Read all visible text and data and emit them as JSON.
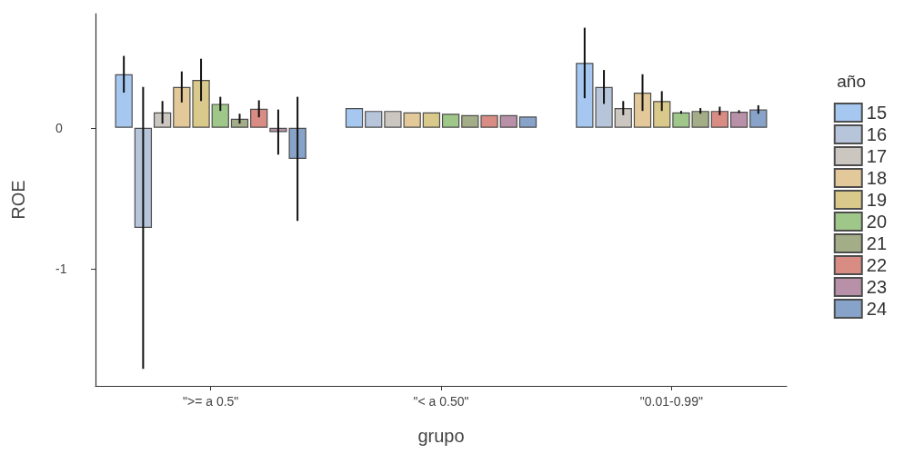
{
  "chart_data": {
    "type": "bar",
    "xlabel": "grupo",
    "ylabel": "ROE",
    "legend_title": "año",
    "legend": "right",
    "categories": [
      "\">= a 0.5\"",
      "\"< a 0.50\"",
      "\"0.01-0.99\""
    ],
    "ylim": [
      -1.83,
      0.81
    ],
    "yticks": [
      -1,
      0
    ],
    "series": [
      {
        "name": "15",
        "color": "#a6c8f0",
        "values": [
          0.38,
          0.14,
          0.46
        ],
        "errors": [
          0.13,
          null,
          0.25
        ]
      },
      {
        "name": "16",
        "color": "#b7c5da",
        "values": [
          -0.71,
          0.12,
          0.29
        ],
        "errors": [
          1.0,
          null,
          0.12
        ]
      },
      {
        "name": "17",
        "color": "#cbc6c0",
        "values": [
          0.11,
          0.12,
          0.14
        ],
        "errors": [
          0.08,
          null,
          0.05
        ]
      },
      {
        "name": "18",
        "color": "#e3c99a",
        "values": [
          0.29,
          0.11,
          0.25
        ],
        "errors": [
          0.11,
          null,
          0.13
        ]
      },
      {
        "name": "19",
        "color": "#d9c98a",
        "values": [
          0.34,
          0.11,
          0.19
        ],
        "errors": [
          0.15,
          null,
          0.07
        ]
      },
      {
        "name": "20",
        "color": "#9fc78a",
        "values": [
          0.17,
          0.1,
          0.11
        ],
        "errors": [
          0.05,
          null,
          0.01
        ]
      },
      {
        "name": "21",
        "color": "#a3ad88",
        "values": [
          0.065,
          0.09,
          0.12
        ],
        "errors": [
          0.035,
          null,
          0.02
        ]
      },
      {
        "name": "22",
        "color": "#d98c84",
        "values": [
          0.135,
          0.09,
          0.12
        ],
        "errors": [
          0.06,
          null,
          0.03
        ]
      },
      {
        "name": "23",
        "color": "#b891a8",
        "values": [
          -0.03,
          0.09,
          0.115
        ],
        "errors": [
          0.16,
          null,
          0.01
        ]
      },
      {
        "name": "24",
        "color": "#87a3c9",
        "values": [
          -0.22,
          0.08,
          0.13
        ],
        "errors": [
          0.44,
          null,
          0.03
        ]
      }
    ]
  }
}
